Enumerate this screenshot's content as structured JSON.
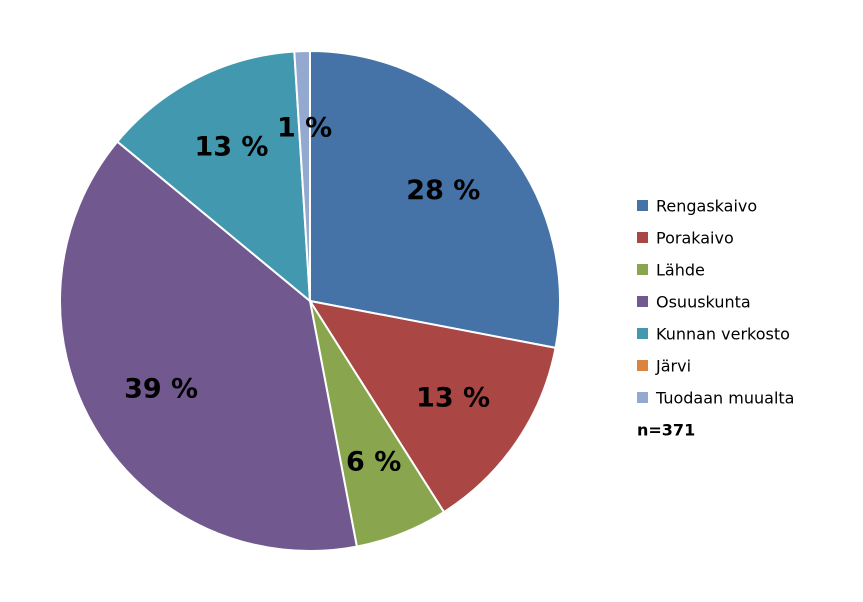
{
  "chart_data": {
    "type": "pie",
    "categories": [
      "Rengaskaivo",
      "Porakaivo",
      "Lähde",
      "Osuuskunta",
      "Kunnan verkosto",
      "Järvi",
      "Tuodaan muualta"
    ],
    "values": [
      28,
      13,
      6,
      39,
      13,
      0,
      1
    ],
    "data_labels": [
      "28 %",
      "13 %",
      "6 %",
      "39 %",
      "13 %",
      "",
      "1 %"
    ],
    "colors": [
      "#4572A7",
      "#AA4643",
      "#89A54E",
      "#71588F",
      "#4198AF",
      "#DB843D",
      "#93A9CF"
    ],
    "slice_border_color": "#ffffff",
    "start_angle_deg": 0,
    "direction": "clockwise",
    "legend": {
      "placement": "right",
      "entries": [
        "Rengaskaivo",
        "Porakaivo",
        "Lähde",
        "Osuuskunta",
        "Kunnan verkosto",
        "Järvi",
        "Tuodaan muualta"
      ],
      "note": "n=371"
    },
    "title": "",
    "grid": false
  }
}
